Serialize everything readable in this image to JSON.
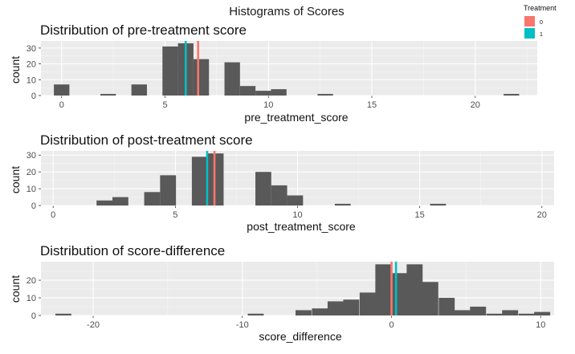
{
  "figure_title": "Histograms of Scores",
  "legend": {
    "title": "Treatment",
    "entries": [
      {
        "label": "0",
        "color": "#F8766D"
      },
      {
        "label": "1",
        "color": "#00BFC4"
      }
    ]
  },
  "colors": {
    "bar": "#595959",
    "panel": "#EBEBEB",
    "grid_major": "#FFFFFF",
    "grid_minor": "#F5F5F5"
  },
  "chart_data": [
    {
      "type": "bar",
      "title": "Distribution of pre-treatment score",
      "xlabel": "pre_treatment_score",
      "ylabel": "count",
      "xlim": [
        -1.0,
        23.0
      ],
      "ylim": [
        0,
        34.5
      ],
      "xticks": [
        0,
        5,
        10,
        15,
        20
      ],
      "yticks": [
        0,
        10,
        20,
        30
      ],
      "tick_labels_x": [
        "0",
        "5",
        "10",
        "15",
        "20"
      ],
      "tick_labels_y": [
        "0",
        "10",
        "20",
        "30"
      ],
      "bin_width": 0.75,
      "bins": [
        {
          "x": 0.0,
          "count": 7
        },
        {
          "x": 2.25,
          "count": 1
        },
        {
          "x": 3.75,
          "count": 7
        },
        {
          "x": 5.25,
          "count": 31
        },
        {
          "x": 6.0,
          "count": 33
        },
        {
          "x": 6.75,
          "count": 23
        },
        {
          "x": 8.25,
          "count": 21
        },
        {
          "x": 9.0,
          "count": 6
        },
        {
          "x": 9.75,
          "count": 3
        },
        {
          "x": 10.5,
          "count": 4
        },
        {
          "x": 12.75,
          "count": 1
        },
        {
          "x": 21.75,
          "count": 1
        }
      ],
      "mean_lines": [
        {
          "treatment": "0",
          "value": 6.6
        },
        {
          "treatment": "1",
          "value": 6.0
        }
      ]
    },
    {
      "type": "bar",
      "title": "Distribution of post-treatment score",
      "xlabel": "post_treatment_score",
      "ylabel": "count",
      "xlim": [
        -0.5,
        20.5
      ],
      "ylim": [
        0,
        32.5
      ],
      "xticks": [
        0,
        5,
        10,
        15,
        20
      ],
      "yticks": [
        0,
        10,
        20,
        30
      ],
      "tick_labels_x": [
        "0",
        "5",
        "10",
        "15",
        "20"
      ],
      "tick_labels_y": [
        "0",
        "10",
        "20",
        "30"
      ],
      "bin_width": 0.65,
      "bins": [
        {
          "x": 2.1,
          "count": 3
        },
        {
          "x": 2.75,
          "count": 5
        },
        {
          "x": 4.05,
          "count": 8
        },
        {
          "x": 4.7,
          "count": 18
        },
        {
          "x": 6.0,
          "count": 29
        },
        {
          "x": 6.65,
          "count": 31
        },
        {
          "x": 8.6,
          "count": 20
        },
        {
          "x": 9.25,
          "count": 12
        },
        {
          "x": 9.9,
          "count": 6
        },
        {
          "x": 11.85,
          "count": 1
        },
        {
          "x": 15.75,
          "count": 1
        }
      ],
      "mean_lines": [
        {
          "treatment": "0",
          "value": 6.6
        },
        {
          "treatment": "1",
          "value": 6.3
        }
      ]
    },
    {
      "type": "bar",
      "title": "Distribution of score-difference",
      "xlabel": "score_difference",
      "ylabel": "count",
      "xlim": [
        -23.5,
        10.9
      ],
      "ylim": [
        0,
        30.5
      ],
      "xticks": [
        -20,
        -10,
        0,
        10
      ],
      "yticks": [
        0,
        10,
        20
      ],
      "tick_labels_x": [
        "-20",
        "-10",
        "0",
        "10"
      ],
      "tick_labels_y": [
        "0",
        "10",
        "20"
      ],
      "bin_width": 1.07,
      "bins": [
        {
          "x": -22.0,
          "count": 1
        },
        {
          "x": -9.1,
          "count": 1
        },
        {
          "x": -5.9,
          "count": 3
        },
        {
          "x": -4.8,
          "count": 4
        },
        {
          "x": -3.75,
          "count": 8
        },
        {
          "x": -2.7,
          "count": 9
        },
        {
          "x": -1.6,
          "count": 13
        },
        {
          "x": -0.55,
          "count": 29
        },
        {
          "x": 0.5,
          "count": 24
        },
        {
          "x": 1.55,
          "count": 29
        },
        {
          "x": 2.6,
          "count": 19
        },
        {
          "x": 3.7,
          "count": 10
        },
        {
          "x": 4.75,
          "count": 3
        },
        {
          "x": 5.8,
          "count": 5
        },
        {
          "x": 6.9,
          "count": 1
        },
        {
          "x": 7.95,
          "count": 3
        },
        {
          "x": 9.05,
          "count": 1
        },
        {
          "x": 10.1,
          "count": 2
        }
      ],
      "mean_lines": [
        {
          "treatment": "0",
          "value": 0.0
        },
        {
          "treatment": "1",
          "value": 0.3
        }
      ]
    }
  ]
}
